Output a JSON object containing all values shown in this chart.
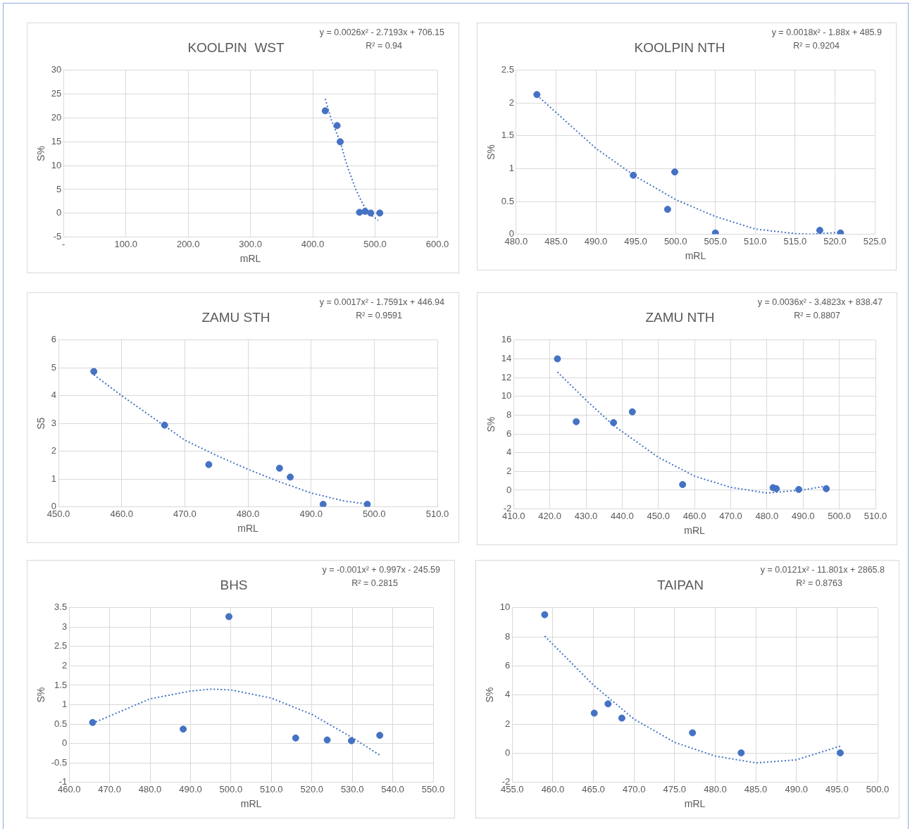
{
  "chart_data": [
    {
      "type": "scatter",
      "title": "KOOLPIN  WST",
      "xlabel": "mRL",
      "ylabel": "S%",
      "xlim": [
        0,
        600
      ],
      "xticks": [
        {
          "value": 0,
          "label": "-"
        },
        {
          "value": 100,
          "label": "100.0"
        },
        {
          "value": 200,
          "label": "200.0"
        },
        {
          "value": 300,
          "label": "300.0"
        },
        {
          "value": 400,
          "label": "400.0"
        },
        {
          "value": 500,
          "label": "500.0"
        },
        {
          "value": 600,
          "label": "600.0"
        }
      ],
      "ylim": [
        -5,
        30
      ],
      "yticks": [
        -5,
        0,
        5,
        10,
        15,
        20,
        25,
        30
      ],
      "grid": true,
      "marker": "circle",
      "series": [
        {
          "color": "#4472c4",
          "x": [
            420,
            439,
            444,
            475,
            484,
            493,
            507.5
          ],
          "values": [
            21.5,
            18.4,
            15.0,
            0.2,
            0.4,
            0.05,
            0.05
          ]
        },
        {
          "type": "line",
          "color": "#4472c4",
          "line_style": "dotted",
          "marker": "none",
          "x": [
            420,
            430,
            444,
            455,
            469,
            480,
            490,
            505
          ],
          "values": [
            24,
            19.5,
            15,
            10,
            5,
            2,
            0,
            -1.5
          ]
        }
      ],
      "annotations": [
        "y = 0.0026x² - 2.7193x + 706.15",
        "R² = 0.94"
      ]
    },
    {
      "type": "scatter",
      "title": "KOOLPIN NTH",
      "xlabel": "mRL",
      "ylabel": "S%",
      "xlim": [
        480,
        525
      ],
      "xticks": [
        {
          "value": 480,
          "label": "480.0"
        },
        {
          "value": 485,
          "label": "485.0"
        },
        {
          "value": 490,
          "label": "490.0"
        },
        {
          "value": 495,
          "label": "495.0"
        },
        {
          "value": 500,
          "label": "500.0"
        },
        {
          "value": 505,
          "label": "505.0"
        },
        {
          "value": 510,
          "label": "510.0"
        },
        {
          "value": 515,
          "label": "515.0"
        },
        {
          "value": 520,
          "label": "520.0"
        },
        {
          "value": 525,
          "label": "525.0"
        }
      ],
      "ylim": [
        0,
        2.5
      ],
      "yticks": [
        0,
        0.5,
        1,
        1.5,
        2,
        2.5
      ],
      "grid": true,
      "marker": "circle",
      "series": [
        {
          "color": "#4472c4",
          "x": [
            482.6,
            494.7,
            499.9,
            499.0,
            505.0,
            518.1,
            520.7
          ],
          "values": [
            2.13,
            0.9,
            0.95,
            0.38,
            0.02,
            0.06,
            0.02
          ]
        },
        {
          "type": "line",
          "color": "#4472c4",
          "line_style": "dotted",
          "marker": "none",
          "x": [
            482.6,
            490,
            495,
            500,
            505,
            510,
            515,
            517,
            520.7
          ],
          "values": [
            2.12,
            1.31,
            0.88,
            0.53,
            0.27,
            0.08,
            0.01,
            0,
            0.03
          ]
        }
      ],
      "annotations": [
        "y = 0.0018x² - 1.88x + 485.9",
        "R² = 0.9204"
      ]
    },
    {
      "type": "scatter",
      "title": "ZAMU STH",
      "xlabel": "mRL",
      "ylabel": "S5",
      "xlim": [
        450,
        510
      ],
      "xticks": [
        {
          "value": 450,
          "label": "450.0"
        },
        {
          "value": 460,
          "label": "460.0"
        },
        {
          "value": 470,
          "label": "470.0"
        },
        {
          "value": 480,
          "label": "480.0"
        },
        {
          "value": 490,
          "label": "490.0"
        },
        {
          "value": 500,
          "label": "500.0"
        },
        {
          "value": 510,
          "label": "510.0"
        }
      ],
      "ylim": [
        0,
        6
      ],
      "yticks": [
        0,
        1,
        2,
        3,
        4,
        5,
        6
      ],
      "grid": true,
      "marker": "circle",
      "series": [
        {
          "color": "#4472c4",
          "x": [
            455.6,
            466.8,
            473.8,
            485.0,
            486.7,
            491.9,
            498.9
          ],
          "values": [
            4.87,
            2.94,
            1.52,
            1.39,
            1.07,
            0.09,
            0.09
          ]
        },
        {
          "type": "line",
          "color": "#4472c4",
          "line_style": "dotted",
          "marker": "none",
          "x": [
            455.6,
            460,
            465,
            470,
            475,
            480,
            485,
            490,
            495,
            498.9
          ],
          "values": [
            4.75,
            4.0,
            3.2,
            2.4,
            1.85,
            1.35,
            0.9,
            0.5,
            0.22,
            0.1
          ]
        }
      ],
      "annotations": [
        "y = 0.0017x² - 1.7591x + 446.94",
        "R² = 0.9591"
      ]
    },
    {
      "type": "scatter",
      "title": "ZAMU NTH",
      "xlabel": "mRL",
      "ylabel": "S%",
      "xlim": [
        410,
        510
      ],
      "xticks": [
        {
          "value": 410,
          "label": "410.0"
        },
        {
          "value": 420,
          "label": "420.0"
        },
        {
          "value": 430,
          "label": "430.0"
        },
        {
          "value": 440,
          "label": "440.0"
        },
        {
          "value": 450,
          "label": "450.0"
        },
        {
          "value": 460,
          "label": "460.0"
        },
        {
          "value": 470,
          "label": "470.0"
        },
        {
          "value": 480,
          "label": "480.0"
        },
        {
          "value": 490,
          "label": "490.0"
        },
        {
          "value": 500,
          "label": "500.0"
        },
        {
          "value": 510,
          "label": "510.0"
        }
      ],
      "ylim": [
        -2,
        16
      ],
      "yticks": [
        -2,
        0,
        2,
        4,
        6,
        8,
        10,
        12,
        14,
        16
      ],
      "grid": true,
      "marker": "circle",
      "series": [
        {
          "color": "#4472c4",
          "x": [
            422.1,
            427.3,
            437.6,
            442.8,
            456.7,
            481.7,
            482.6,
            488.8,
            496.4
          ],
          "values": [
            14.0,
            7.3,
            7.2,
            8.35,
            0.6,
            0.27,
            0.16,
            0.08,
            0.16
          ]
        },
        {
          "type": "line",
          "color": "#4472c4",
          "line_style": "dotted",
          "marker": "none",
          "x": [
            422.1,
            430,
            437.6,
            450,
            460,
            470,
            480,
            490,
            496.2
          ],
          "values": [
            12.6,
            9.6,
            6.9,
            3.5,
            1.5,
            0.3,
            -0.3,
            0.03,
            0.43
          ]
        }
      ],
      "annotations": [
        "y = 0.0036x² - 3.4823x + 838.47",
        "R² = 0.8807"
      ]
    },
    {
      "type": "scatter",
      "title": "BHS",
      "xlabel": "mRL",
      "ylabel": "S%",
      "xlim": [
        460,
        550
      ],
      "xticks": [
        {
          "value": 460,
          "label": "460.0"
        },
        {
          "value": 470,
          "label": "470.0"
        },
        {
          "value": 480,
          "label": "480.0"
        },
        {
          "value": 490,
          "label": "490.0"
        },
        {
          "value": 500,
          "label": "500.0"
        },
        {
          "value": 510,
          "label": "510.0"
        },
        {
          "value": 520,
          "label": "520.0"
        },
        {
          "value": 530,
          "label": "530.0"
        },
        {
          "value": 540,
          "label": "540.0"
        },
        {
          "value": 550,
          "label": "550.0"
        }
      ],
      "ylim": [
        -1,
        3.5
      ],
      "yticks": [
        -1,
        -0.5,
        0,
        0.5,
        1,
        1.5,
        2,
        2.5,
        3,
        3.5
      ],
      "grid": true,
      "marker": "circle",
      "series": [
        {
          "color": "#4472c4",
          "x": [
            465.8,
            488.2,
            499.5,
            516.0,
            523.8,
            529.8,
            536.8
          ],
          "values": [
            0.54,
            0.37,
            3.27,
            0.14,
            0.09,
            0.07,
            0.21
          ]
        },
        {
          "type": "line",
          "color": "#4472c4",
          "line_style": "dotted",
          "marker": "none",
          "x": [
            465.8,
            480,
            490,
            495,
            500,
            510,
            520,
            530,
            536.8
          ],
          "values": [
            0.52,
            1.15,
            1.35,
            1.4,
            1.38,
            1.17,
            0.75,
            0.15,
            -0.3
          ]
        }
      ],
      "annotations": [
        "y = -0.001x² + 0.997x - 245.59",
        "R² = 0.2815"
      ]
    },
    {
      "type": "scatter",
      "title": "TAIPAN",
      "xlabel": "mRL",
      "ylabel": "S%",
      "xlim": [
        455,
        500
      ],
      "xticks": [
        {
          "value": 455,
          "label": "455.0"
        },
        {
          "value": 460,
          "label": "460.0"
        },
        {
          "value": 465,
          "label": "465.0"
        },
        {
          "value": 470,
          "label": "470.0"
        },
        {
          "value": 475,
          "label": "475.0"
        },
        {
          "value": 480,
          "label": "480.0"
        },
        {
          "value": 485,
          "label": "485.0"
        },
        {
          "value": 490,
          "label": "490.0"
        },
        {
          "value": 495,
          "label": "495.0"
        },
        {
          "value": 500,
          "label": "500.0"
        }
      ],
      "ylim": [
        -2,
        10
      ],
      "yticks": [
        -2,
        0,
        2,
        4,
        6,
        8,
        10
      ],
      "grid": true,
      "marker": "circle",
      "series": [
        {
          "color": "#4472c4",
          "x": [
            459.0,
            465.1,
            466.8,
            468.5,
            477.2,
            483.2,
            495.4
          ],
          "values": [
            9.52,
            2.75,
            3.39,
            2.41,
            1.4,
            0.02,
            0.02
          ]
        },
        {
          "type": "line",
          "color": "#4472c4",
          "line_style": "dotted",
          "marker": "none",
          "x": [
            459.0,
            465,
            470,
            475,
            480,
            485,
            490,
            495.4
          ],
          "values": [
            8.05,
            4.68,
            2.34,
            0.74,
            -0.2,
            -0.67,
            -0.46,
            0.48
          ]
        }
      ],
      "annotations": [
        "y = 0.0121x² - 11.801x + 2865.8",
        "R² = 0.8763"
      ]
    }
  ]
}
